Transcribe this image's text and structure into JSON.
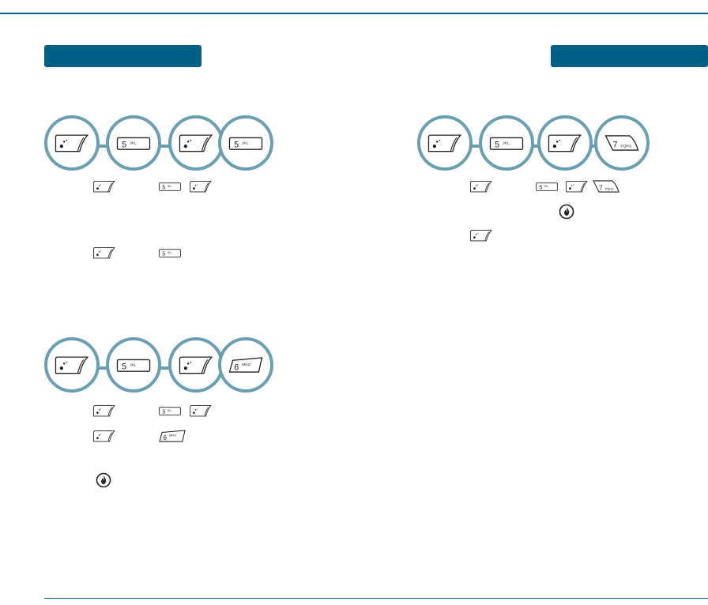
{
  "colors": {
    "accent": "#005f84",
    "circle_border": "#6a9fb2"
  },
  "sequences": {
    "seq_a": [
      "menu-key",
      "5-jkl-key",
      "menu-key",
      "5-jkl-key"
    ],
    "seq_b": [
      "menu-key",
      "5-jkl-key",
      "menu-key",
      "6-mno-key"
    ],
    "seq_c": [
      "menu-key",
      "5-jkl-key",
      "menu-key",
      "7-pqrs-key"
    ]
  },
  "inline_keys": {
    "a_line1": [
      "menu-key",
      "5-jkl-key",
      "menu-key"
    ],
    "a_line2": [
      "menu-key",
      "5-jkl-key"
    ],
    "b_line1": [
      "menu-key",
      "5-jkl-key",
      "menu-key"
    ],
    "b_line2": [
      "menu-key",
      "6-mno-key"
    ],
    "b_line3": [
      "ok-key"
    ],
    "c_line1": [
      "menu-key",
      "5-jkl-key",
      "menu-key",
      "7-pqrs-key"
    ],
    "c_line2": [
      "ok-key"
    ],
    "c_line3": [
      "menu-key"
    ]
  }
}
